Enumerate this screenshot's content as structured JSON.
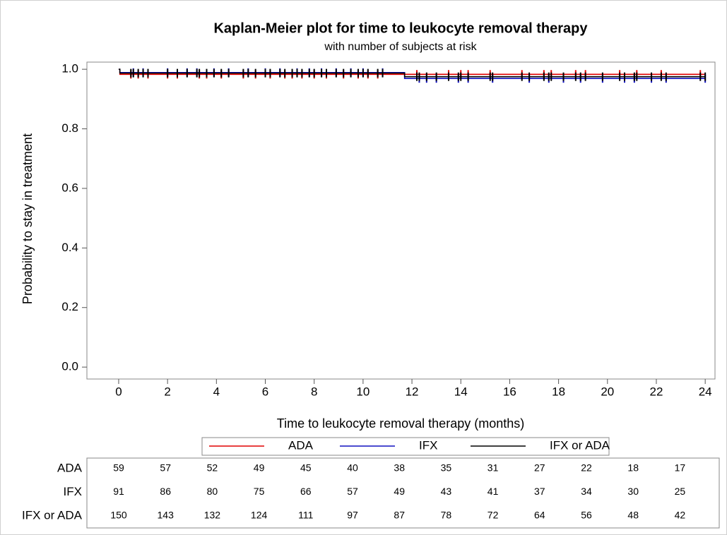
{
  "chart_data": {
    "type": "step",
    "title": "Kaplan-Meier plot for time to leukocyte removal therapy",
    "subtitle": "with number of subjects at risk",
    "x_label": "Time to leukocyte removal therapy (months)",
    "y_label": "Probability to stay in treatment",
    "xlim": [
      -1.3,
      24.4
    ],
    "ylim": [
      -0.04,
      1.024
    ],
    "xticks": [
      0,
      2,
      4,
      6,
      8,
      10,
      12,
      14,
      16,
      18,
      20,
      22,
      24
    ],
    "yticks": [
      {
        "value": 0,
        "label": "0.0"
      },
      0.2,
      0.4,
      0.6,
      0.8,
      {
        "value": 1,
        "label": "1.0"
      }
    ],
    "series": [
      {
        "name": "ADA",
        "color": "#e00000",
        "x": [
          0,
          0.05,
          24
        ],
        "values": [
          1.0,
          0.983,
          0.983
        ],
        "censored": [
          0.5,
          0.8,
          1.2,
          2.0,
          2.4,
          3.3,
          3.6,
          4.2,
          5.1,
          5.6,
          6.2,
          6.8,
          7.1,
          7.5,
          8.0,
          8.5,
          9.2,
          9.8,
          10.2,
          10.6,
          12.2,
          13.5,
          14.0,
          14.3,
          15.2,
          16.5,
          17.4,
          17.7,
          18.7,
          19.1,
          20.5,
          21.2,
          22.2,
          23.8
        ]
      },
      {
        "name": "IFX",
        "color": "#1010c0",
        "x": [
          0,
          0.05,
          11.7,
          24
        ],
        "values": [
          1.0,
          0.989,
          0.969,
          0.969
        ],
        "censored": [
          0.6,
          1.0,
          2.0,
          2.8,
          3.2,
          3.9,
          4.5,
          5.3,
          6.0,
          6.6,
          7.3,
          7.8,
          8.3,
          8.9,
          9.5,
          10.0,
          10.8,
          12.3,
          12.6,
          13.0,
          13.9,
          14.3,
          15.3,
          16.8,
          17.6,
          18.2,
          18.9,
          19.8,
          20.7,
          21.1,
          21.8,
          22.4,
          24.0
        ]
      },
      {
        "name": "IFX or ADA",
        "color": "#000000",
        "x": [
          0,
          0.05,
          11.7,
          24
        ],
        "values": [
          1.0,
          0.987,
          0.975,
          0.975
        ],
        "censored": [
          0.5,
          0.6,
          0.8,
          1.0,
          1.2,
          2.0,
          2.4,
          2.8,
          3.2,
          3.3,
          3.6,
          3.9,
          4.2,
          4.5,
          5.1,
          5.3,
          5.6,
          6.0,
          6.2,
          6.6,
          6.8,
          7.1,
          7.3,
          7.5,
          7.8,
          8.0,
          8.3,
          8.5,
          8.9,
          9.2,
          9.5,
          9.8,
          10.0,
          10.2,
          10.6,
          10.8,
          12.2,
          12.3,
          12.6,
          13.0,
          13.5,
          13.9,
          14.0,
          14.3,
          15.2,
          15.3,
          16.5,
          16.8,
          17.4,
          17.6,
          17.7,
          18.2,
          18.7,
          18.9,
          19.1,
          19.8,
          20.5,
          20.7,
          21.1,
          21.2,
          21.8,
          22.2,
          22.4,
          23.8,
          24.0
        ]
      }
    ],
    "risk_table": [
      {
        "name": "ADA",
        "values": [
          59,
          57,
          52,
          49,
          45,
          40,
          38,
          35,
          31,
          27,
          22,
          18,
          17
        ]
      },
      {
        "name": "IFX",
        "values": [
          91,
          86,
          80,
          75,
          66,
          57,
          49,
          43,
          41,
          37,
          34,
          30,
          25
        ]
      },
      {
        "name": "IFX or ADA",
        "values": [
          150,
          143,
          132,
          124,
          111,
          97,
          87,
          78,
          72,
          64,
          56,
          48,
          42
        ]
      }
    ]
  }
}
